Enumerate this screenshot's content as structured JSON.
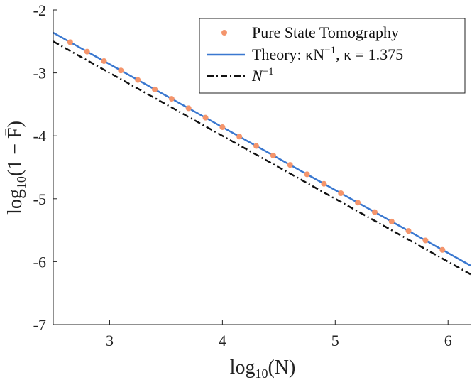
{
  "chart_data": {
    "type": "line",
    "xlabel_base": "log",
    "xlabel_sub": "10",
    "xlabel_arg": "(N)",
    "ylabel_base": "log",
    "ylabel_sub": "10",
    "ylabel_arg": "(1 − F̄)",
    "xlim": [
      2.5,
      6.2
    ],
    "ylim": [
      -7,
      -2
    ],
    "xticks": [
      3,
      4,
      5,
      6
    ],
    "xtick_labels": [
      "3",
      "4",
      "5",
      "6"
    ],
    "yticks": [
      -2,
      -3,
      -4,
      -5,
      -6,
      -7
    ],
    "ytick_labels": [
      "-2",
      "-3",
      "-4",
      "-5",
      "-6",
      "-7"
    ],
    "grid": false,
    "legend_position": "top-right",
    "series": [
      {
        "name": "Pure State Tomography",
        "style": "markers",
        "color": "#f4956c",
        "x": [
          2.65,
          2.8,
          2.95,
          3.1,
          3.25,
          3.4,
          3.55,
          3.7,
          3.85,
          4.0,
          4.15,
          4.3,
          4.45,
          4.6,
          4.75,
          4.9,
          5.05,
          5.2,
          5.35,
          5.5,
          5.65,
          5.8,
          5.95
        ],
        "y": [
          -2.512,
          -2.662,
          -2.812,
          -2.962,
          -3.112,
          -3.262,
          -3.412,
          -3.562,
          -3.712,
          -3.862,
          -4.012,
          -4.162,
          -4.312,
          -4.462,
          -4.612,
          -4.762,
          -4.912,
          -5.062,
          -5.212,
          -5.362,
          -5.512,
          -5.662,
          -5.812
        ]
      },
      {
        "name": "Theory: κN⁻¹, κ = 1.375",
        "legend_main": "Theory: κN",
        "legend_sup": "−1",
        "legend_tail": ", κ = 1.375",
        "style": "solid",
        "color": "#3a78d0",
        "x": [
          2.5,
          6.2
        ],
        "y": [
          -2.362,
          -6.062
        ]
      },
      {
        "name": "N⁻¹",
        "legend_main": "N",
        "legend_sup": "−1",
        "style": "dashdot",
        "color": "#111111",
        "x": [
          2.5,
          6.2
        ],
        "y": [
          -2.5,
          -6.2
        ]
      }
    ]
  }
}
